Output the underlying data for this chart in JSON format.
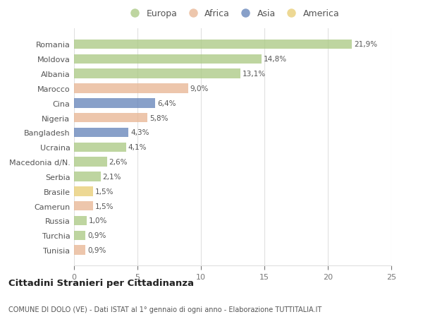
{
  "categories": [
    "Romania",
    "Moldova",
    "Albania",
    "Marocco",
    "Cina",
    "Nigeria",
    "Bangladesh",
    "Ucraina",
    "Macedonia d/N.",
    "Serbia",
    "Brasile",
    "Camerun",
    "Russia",
    "Turchia",
    "Tunisia"
  ],
  "values": [
    21.9,
    14.8,
    13.1,
    9.0,
    6.4,
    5.8,
    4.3,
    4.1,
    2.6,
    2.1,
    1.5,
    1.5,
    1.0,
    0.9,
    0.9
  ],
  "labels": [
    "21,9%",
    "14,8%",
    "13,1%",
    "9,0%",
    "6,4%",
    "5,8%",
    "4,3%",
    "4,1%",
    "2,6%",
    "2,1%",
    "1,5%",
    "1,5%",
    "1,0%",
    "0,9%",
    "0,9%"
  ],
  "continents": [
    "Europa",
    "Europa",
    "Europa",
    "Africa",
    "Asia",
    "Africa",
    "Asia",
    "Europa",
    "Europa",
    "Europa",
    "America",
    "Africa",
    "Europa",
    "Europa",
    "Africa"
  ],
  "colors": {
    "Europa": "#a8c880",
    "Africa": "#e8b490",
    "Asia": "#6080b8",
    "America": "#e8cc70"
  },
  "legend_labels": [
    "Europa",
    "Africa",
    "Asia",
    "America"
  ],
  "legend_colors": [
    "#a8c880",
    "#e8b490",
    "#6080b8",
    "#e8cc70"
  ],
  "title": "Cittadini Stranieri per Cittadinanza",
  "subtitle": "COMUNE DI DOLO (VE) - Dati ISTAT al 1° gennaio di ogni anno - Elaborazione TUTTITALIA.IT",
  "xlim": [
    0,
    25
  ],
  "xticks": [
    0,
    5,
    10,
    15,
    20,
    25
  ],
  "background_color": "#ffffff",
  "grid_color": "#e0e0e0",
  "bar_alpha": 0.75
}
